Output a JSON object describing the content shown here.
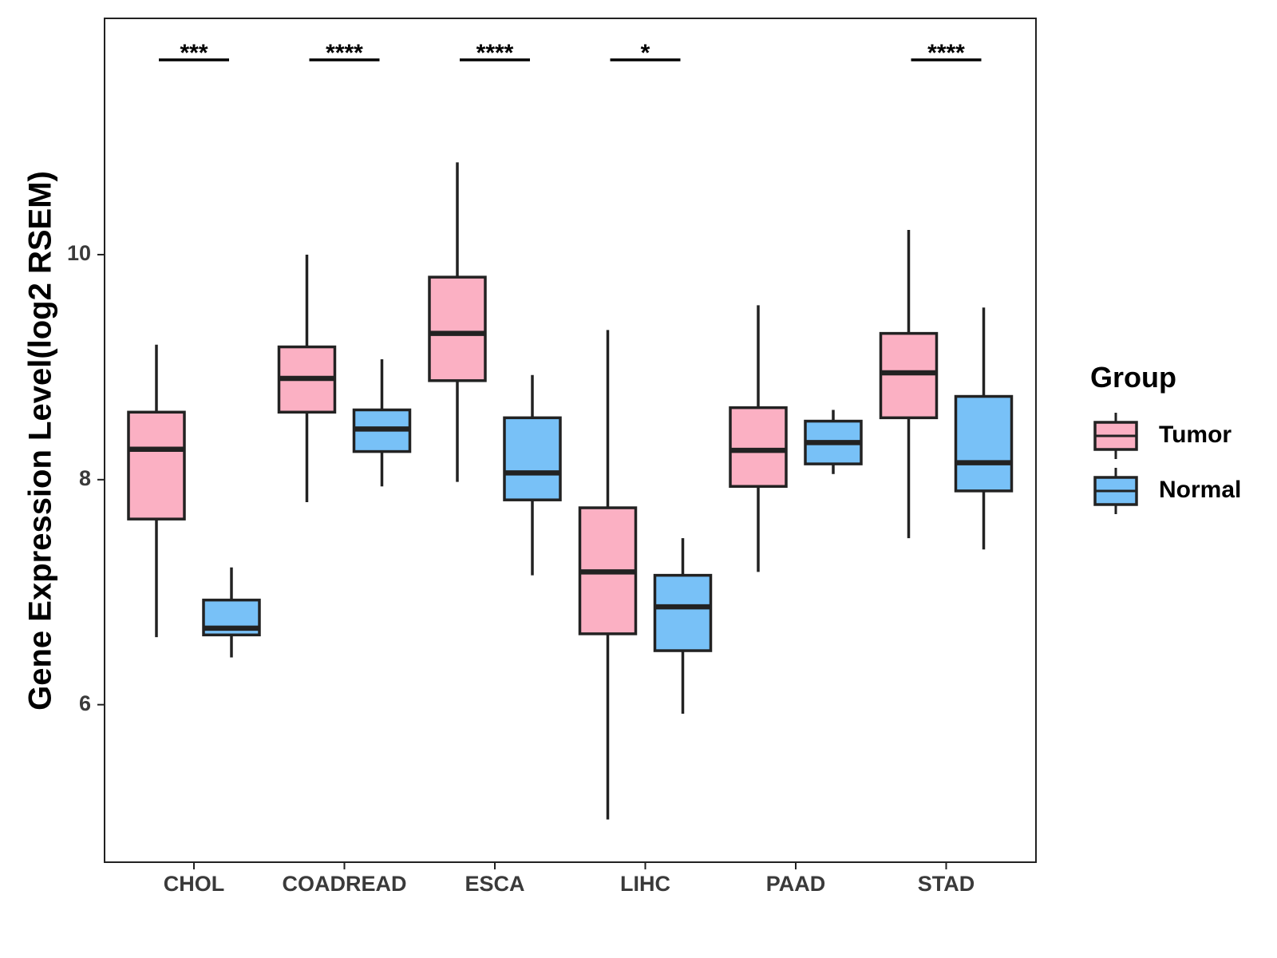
{
  "chart_data": {
    "type": "boxplot",
    "title": "",
    "xlabel": "",
    "ylabel": "Gene Expression Level(log2 RSEM)",
    "ylim": [
      4.6,
      12.1
    ],
    "yticks": [
      6,
      8,
      10
    ],
    "grid": false,
    "categories": [
      "CHOL",
      "COADREAD",
      "ESCA",
      "LIHC",
      "PAAD",
      "STAD"
    ],
    "legend": {
      "title": "Group",
      "position": "right",
      "entries": [
        {
          "name": "Tumor",
          "color": "#FBB0C3"
        },
        {
          "name": "Normal",
          "color": "#78C1F7"
        }
      ]
    },
    "series": [
      {
        "name": "Tumor",
        "color": "#FBB0C3",
        "boxes": [
          {
            "min": 6.6,
            "q1": 7.65,
            "median": 8.27,
            "q3": 8.6,
            "max": 9.2
          },
          {
            "min": 7.8,
            "q1": 8.6,
            "median": 8.9,
            "q3": 9.18,
            "max": 10.0
          },
          {
            "min": 7.98,
            "q1": 8.88,
            "median": 9.3,
            "q3": 9.8,
            "max": 10.82
          },
          {
            "min": 4.98,
            "q1": 6.63,
            "median": 7.18,
            "q3": 7.75,
            "max": 9.33
          },
          {
            "min": 7.18,
            "q1": 7.94,
            "median": 8.26,
            "q3": 8.64,
            "max": 9.55
          },
          {
            "min": 7.48,
            "q1": 8.55,
            "median": 8.95,
            "q3": 9.3,
            "max": 10.22
          }
        ]
      },
      {
        "name": "Normal",
        "color": "#78C1F7",
        "boxes": [
          {
            "min": 6.42,
            "q1": 6.62,
            "median": 6.68,
            "q3": 6.93,
            "max": 7.22
          },
          {
            "min": 7.94,
            "q1": 8.25,
            "median": 8.45,
            "q3": 8.62,
            "max": 9.07
          },
          {
            "min": 7.15,
            "q1": 7.82,
            "median": 8.06,
            "q3": 8.55,
            "max": 8.93
          },
          {
            "min": 5.92,
            "q1": 6.48,
            "median": 6.87,
            "q3": 7.15,
            "max": 7.48
          },
          {
            "min": 8.05,
            "q1": 8.14,
            "median": 8.33,
            "q3": 8.52,
            "max": 8.62
          },
          {
            "min": 7.38,
            "q1": 7.9,
            "median": 8.15,
            "q3": 8.74,
            "max": 9.53
          }
        ]
      }
    ],
    "significance": [
      "***",
      "****",
      "****",
      "*",
      "",
      "****"
    ]
  }
}
